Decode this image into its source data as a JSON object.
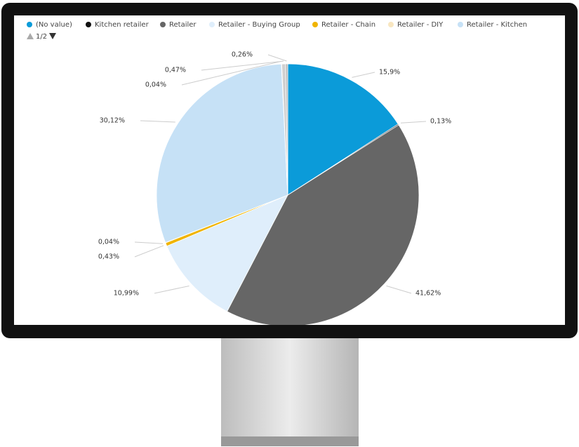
{
  "chart_data": {
    "type": "pie",
    "categories": [
      "(No value)",
      "Kitchen retailer",
      "Retailer",
      "Retailer - Buying Group",
      "Retailer - Chain",
      "Retailer - DIY",
      "Retailer - Kitchen",
      null,
      null,
      null
    ],
    "values": [
      15.9,
      0.13,
      41.62,
      10.99,
      0.43,
      0.04,
      30.12,
      0.04,
      0.47,
      0.26
    ],
    "value_labels": [
      "15,9%",
      "0,13%",
      "41,62%",
      "10,99%",
      "0,43%",
      "0,04%",
      "30,12%",
      "0,04%",
      "0,47%",
      "0,26%"
    ],
    "colors": [
      "#0b9bd9",
      "#111111",
      "#666666",
      "#dfeefb",
      "#f0b400",
      "#f8e6c0",
      "#c6e1f6",
      "#9fb8c8",
      "#d0d0d0",
      "#b8b8b8"
    ],
    "legend_page": "1/2"
  }
}
